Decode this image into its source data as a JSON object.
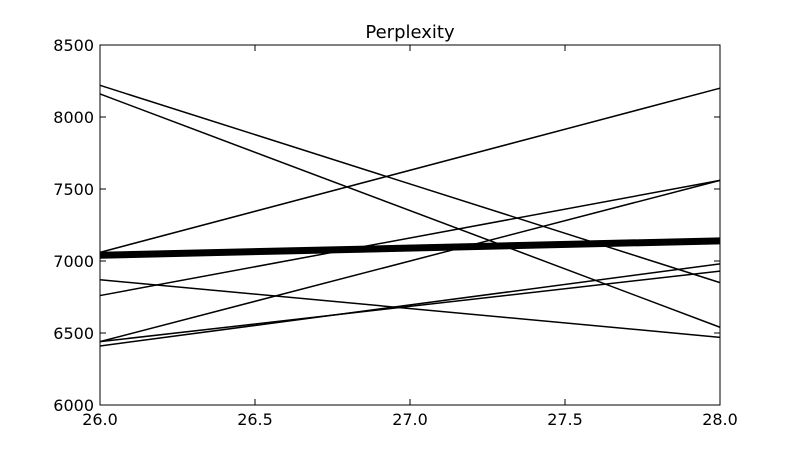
{
  "chart_data": {
    "type": "line",
    "title": "Perplexity",
    "xlabel": "",
    "ylabel": "",
    "xlim": [
      26.0,
      28.0
    ],
    "ylim": [
      6000,
      8500
    ],
    "x_ticks": [
      "26.0",
      "26.5",
      "27.0",
      "27.5",
      "28.0"
    ],
    "y_ticks": [
      "6000",
      "6500",
      "7000",
      "7500",
      "8000",
      "8500"
    ],
    "grid": false,
    "legend": "none",
    "line_color": "#000000",
    "series": [
      {
        "x": [
          26.0,
          28.0
        ],
        "y": [
          8220,
          6850
        ],
        "emphasis": false
      },
      {
        "x": [
          26.0,
          28.0
        ],
        "y": [
          8160,
          6540
        ],
        "emphasis": false
      },
      {
        "x": [
          26.0,
          28.0
        ],
        "y": [
          7060,
          8200
        ],
        "emphasis": false
      },
      {
        "x": [
          26.0,
          28.0
        ],
        "y": [
          6760,
          7560
        ],
        "emphasis": false
      },
      {
        "x": [
          26.0,
          28.0
        ],
        "y": [
          6440,
          7560
        ],
        "emphasis": false
      },
      {
        "x": [
          26.0,
          28.0
        ],
        "y": [
          6870,
          6470
        ],
        "emphasis": false
      },
      {
        "x": [
          26.0,
          28.0
        ],
        "y": [
          6440,
          6930
        ],
        "emphasis": false
      },
      {
        "x": [
          26.0,
          28.0
        ],
        "y": [
          6410,
          6980
        ],
        "emphasis": false
      },
      {
        "x": [
          26.0,
          28.0
        ],
        "y": [
          7040,
          7140
        ],
        "emphasis": true
      }
    ]
  }
}
